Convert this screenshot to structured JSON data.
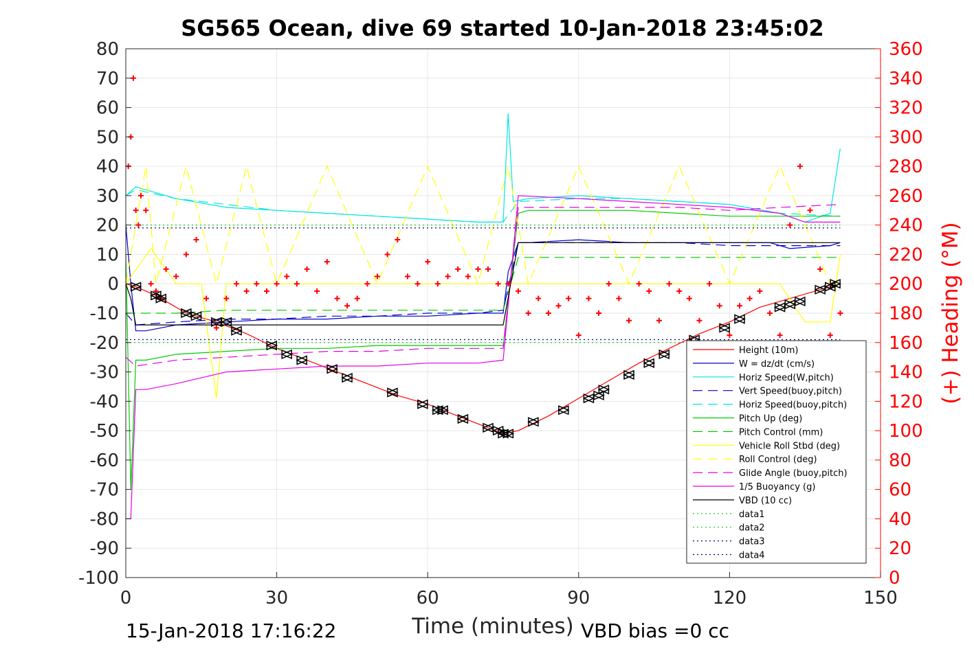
{
  "chart_data": {
    "type": "line",
    "title": "SG565 Ocean, dive 69 started 10-Jan-2018 23:45:02",
    "xlabel": "Time (minutes)",
    "ylabel_right": "(+) Heading (°M)",
    "footer_left": "15-Jan-2018 17:16:22",
    "footer_right": "VBD bias =0 cc",
    "xlim": [
      0,
      150
    ],
    "ylim_left": [
      -100,
      80
    ],
    "ylim_right": [
      0,
      360
    ],
    "x_ticks": [
      "0",
      "30",
      "60",
      "90",
      "120",
      "150"
    ],
    "y_left_ticks": [
      "80",
      "70",
      "60",
      "50",
      "40",
      "30",
      "20",
      "10",
      "0",
      "-10",
      "-20",
      "-30",
      "-40",
      "-50",
      "-60",
      "-70",
      "-80",
      "-90",
      "-100"
    ],
    "y_right_ticks": [
      "360",
      "340",
      "320",
      "300",
      "280",
      "260",
      "240",
      "220",
      "200",
      "180",
      "160",
      "140",
      "120",
      "100",
      "80",
      "60",
      "40",
      "20",
      "0"
    ],
    "grid": true,
    "legend_position": "lower-right",
    "series": [
      {
        "name": "Height (10m)",
        "color": "#ff0000",
        "style": "solid",
        "x": [
          0,
          2,
          6,
          12,
          18,
          24,
          30,
          36,
          42,
          48,
          54,
          60,
          66,
          72,
          75,
          78,
          84,
          90,
          96,
          102,
          108,
          114,
          120,
          126,
          132,
          138,
          142
        ],
        "y": [
          0,
          -1,
          -4,
          -10,
          -13,
          -17,
          -22,
          -26,
          -30,
          -34,
          -38,
          -41,
          -45,
          -49,
          -51,
          -50,
          -45,
          -39,
          -33,
          -27,
          -22,
          -17,
          -13,
          -8,
          -5,
          -2,
          0
        ]
      },
      {
        "name": "W = dz/dt (cm/s)",
        "color": "#0000cc",
        "style": "solid",
        "x": [
          0,
          1,
          2,
          4,
          10,
          20,
          30,
          40,
          50,
          60,
          70,
          75,
          76,
          78,
          80,
          90,
          100,
          110,
          120,
          128,
          132,
          140,
          142
        ],
        "y": [
          20,
          0,
          -16,
          -16,
          -14,
          -13,
          -12,
          -12,
          -11,
          -11,
          -10,
          -10,
          4,
          14,
          14,
          15,
          14,
          14,
          14,
          14,
          12,
          13,
          14
        ]
      },
      {
        "name": "Horiz Speed(W,pitch)",
        "color": "#00e5e5",
        "style": "solid",
        "x": [
          0,
          2,
          4,
          10,
          20,
          30,
          40,
          50,
          60,
          70,
          75,
          76,
          77,
          80,
          90,
          100,
          110,
          120,
          130,
          135,
          140,
          142
        ],
        "y": [
          30,
          33,
          32,
          29,
          26,
          25,
          24,
          23,
          22,
          21,
          21,
          58,
          28,
          29,
          30,
          29,
          28,
          27,
          24,
          21,
          24,
          46
        ]
      },
      {
        "name": "Vert Speed(buoy,pitch)",
        "color": "#0000cc",
        "style": "dashed",
        "x": [
          0,
          2,
          10,
          20,
          30,
          40,
          50,
          60,
          70,
          75,
          78,
          90,
          100,
          110,
          120,
          130,
          142
        ],
        "y": [
          -10,
          -14,
          -13,
          -12,
          -12,
          -11,
          -11,
          -10,
          -10,
          -9,
          14,
          14,
          14,
          14,
          13,
          13,
          13
        ]
      },
      {
        "name": "Horiz Speed(buoy,pitch)",
        "color": "#00e5e5",
        "style": "dashed",
        "x": [
          0,
          2,
          10,
          20,
          30,
          40,
          50,
          60,
          70,
          75,
          78,
          90,
          100,
          110,
          120,
          130,
          142
        ],
        "y": [
          30,
          32,
          29,
          27,
          25,
          24,
          23,
          22,
          21,
          21,
          28,
          29,
          29,
          28,
          27,
          24,
          23
        ]
      },
      {
        "name": "Pitch Up (deg)",
        "color": "#00cc00",
        "style": "solid",
        "x": [
          0,
          1,
          2,
          4,
          10,
          20,
          30,
          40,
          50,
          60,
          70,
          75,
          78,
          80,
          90,
          100,
          110,
          120,
          130,
          142
        ],
        "y": [
          10,
          -70,
          -26,
          -26,
          -24,
          -23,
          -22,
          -22,
          -21,
          -21,
          -21,
          -21,
          24,
          25,
          25,
          25,
          24,
          23,
          23,
          23
        ]
      },
      {
        "name": "Pitch Control (mm)",
        "color": "#00cc00",
        "style": "dashed",
        "x": [
          0,
          2,
          10,
          20,
          30,
          40,
          50,
          60,
          70,
          75,
          78,
          90,
          100,
          110,
          120,
          130,
          142
        ],
        "y": [
          -10,
          -10,
          -10,
          -9,
          -9,
          -9,
          -9,
          -9,
          -9,
          -9,
          9,
          9,
          9,
          9,
          9,
          9,
          9
        ]
      },
      {
        "name": "Vehicle Roll Stbd (deg)",
        "color": "#ffff00",
        "style": "solid",
        "x": [
          0,
          5,
          10,
          15,
          18,
          20,
          30,
          40,
          50,
          60,
          70,
          76,
          80,
          90,
          100,
          110,
          120,
          130,
          135,
          140,
          142
        ],
        "y": [
          0,
          12,
          0,
          0,
          -39,
          0,
          0,
          0,
          0,
          0,
          0,
          0,
          0,
          0,
          0,
          0,
          0,
          0,
          -13,
          -13,
          10
        ]
      },
      {
        "name": "Roll Control (deg)",
        "color": "#ffff00",
        "style": "dashed",
        "x": [
          0,
          4,
          6,
          12,
          18,
          24,
          30,
          40,
          50,
          60,
          70,
          76,
          80,
          90,
          100,
          110,
          120,
          130,
          140,
          142
        ],
        "y": [
          0,
          40,
          0,
          40,
          0,
          40,
          0,
          40,
          0,
          40,
          0,
          40,
          0,
          40,
          0,
          40,
          0,
          40,
          0,
          0
        ]
      },
      {
        "name": "Glide Angle (buoy,pitch)",
        "color": "#e500e5",
        "style": "dashed",
        "x": [
          0,
          2,
          10,
          20,
          30,
          40,
          50,
          60,
          70,
          75,
          78,
          90,
          100,
          110,
          120,
          130,
          142
        ],
        "y": [
          -25,
          -28,
          -26,
          -25,
          -24,
          -23,
          -23,
          -22,
          -22,
          -22,
          26,
          26,
          26,
          26,
          25,
          26,
          27
        ]
      },
      {
        "name": "1/5 Buoyancy (g)",
        "color": "#e500e5",
        "style": "solid",
        "x": [
          0,
          1,
          2,
          4,
          10,
          20,
          30,
          40,
          50,
          60,
          70,
          75,
          78,
          90,
          100,
          110,
          120,
          130,
          135,
          142
        ],
        "y": [
          -80,
          -80,
          -36,
          -36,
          -34,
          -30,
          -29,
          -28,
          -28,
          -27,
          -27,
          -26,
          30,
          29,
          28,
          27,
          26,
          24,
          21,
          21
        ]
      },
      {
        "name": "VBD (10 cc)",
        "color": "#000000",
        "style": "solid",
        "x": [
          0,
          1,
          2,
          75,
          78,
          80,
          142
        ],
        "y": [
          0,
          -5,
          -14,
          -14,
          14,
          14,
          14
        ]
      },
      {
        "name": "data1",
        "color": "#00cc00",
        "style": "dotted",
        "x": [
          0,
          142
        ],
        "y": [
          20,
          20
        ]
      },
      {
        "name": "data2",
        "color": "#00cc00",
        "style": "dotted",
        "x": [
          0,
          142
        ],
        "y": [
          -20,
          -20
        ]
      },
      {
        "name": "data3",
        "color": "#000080",
        "style": "dotted",
        "x": [
          0,
          142
        ],
        "y": [
          19,
          19
        ]
      },
      {
        "name": "data4",
        "color": "#000080",
        "style": "dotted",
        "x": [
          0,
          142
        ],
        "y": [
          -19,
          -19
        ]
      }
    ],
    "heading": {
      "name": "(+) Heading",
      "color": "#ff0000",
      "marker": "+",
      "axis": "right",
      "x": [
        0.5,
        1,
        1.5,
        2,
        2.5,
        3,
        4,
        5,
        6,
        7,
        8,
        10,
        12,
        14,
        16,
        18,
        20,
        22,
        24,
        26,
        28,
        30,
        32,
        34,
        36,
        38,
        40,
        42,
        44,
        46,
        48,
        50,
        52,
        54,
        56,
        58,
        60,
        62,
        64,
        66,
        68,
        70,
        72,
        74,
        76,
        78,
        80,
        82,
        84,
        86,
        88,
        90,
        92,
        94,
        96,
        98,
        100,
        102,
        104,
        106,
        108,
        110,
        112,
        114,
        116,
        118,
        120,
        122,
        124,
        126,
        128,
        130,
        132,
        134,
        136,
        138,
        140,
        142
      ],
      "y": [
        280,
        300,
        340,
        250,
        240,
        260,
        250,
        200,
        195,
        190,
        210,
        205,
        220,
        230,
        190,
        170,
        190,
        200,
        195,
        200,
        195,
        200,
        205,
        200,
        210,
        195,
        215,
        190,
        185,
        190,
        200,
        205,
        220,
        230,
        205,
        200,
        215,
        200,
        205,
        210,
        205,
        210,
        210,
        200,
        200,
        195,
        180,
        190,
        180,
        185,
        190,
        165,
        190,
        180,
        200,
        190,
        175,
        200,
        195,
        175,
        200,
        195,
        190,
        175,
        200,
        185,
        165,
        185,
        190,
        195,
        180,
        165,
        240,
        280,
        250,
        210,
        165,
        180
      ]
    },
    "markers": {
      "name": "Height (10m)",
      "color": "#000000",
      "x": [
        2,
        6,
        7,
        12,
        14,
        18,
        20,
        22,
        29,
        32,
        35,
        41,
        44,
        53,
        59,
        62,
        63,
        67,
        72,
        74,
        75,
        76,
        81,
        87,
        92,
        94,
        95,
        100,
        104,
        107,
        113,
        119,
        122,
        130,
        132,
        134,
        138,
        140,
        141
      ],
      "y": [
        -1,
        -4,
        -5,
        -10,
        -11,
        -13,
        -13,
        -16,
        -21,
        -24,
        -26,
        -29,
        -32,
        -37,
        -41,
        -43,
        -43,
        -46,
        -49,
        -50,
        -51,
        -51,
        -47,
        -43,
        -39,
        -38,
        -36,
        -31,
        -27,
        -24,
        -19,
        -15,
        -12,
        -8,
        -7,
        -6,
        -2,
        -1,
        0
      ]
    }
  }
}
